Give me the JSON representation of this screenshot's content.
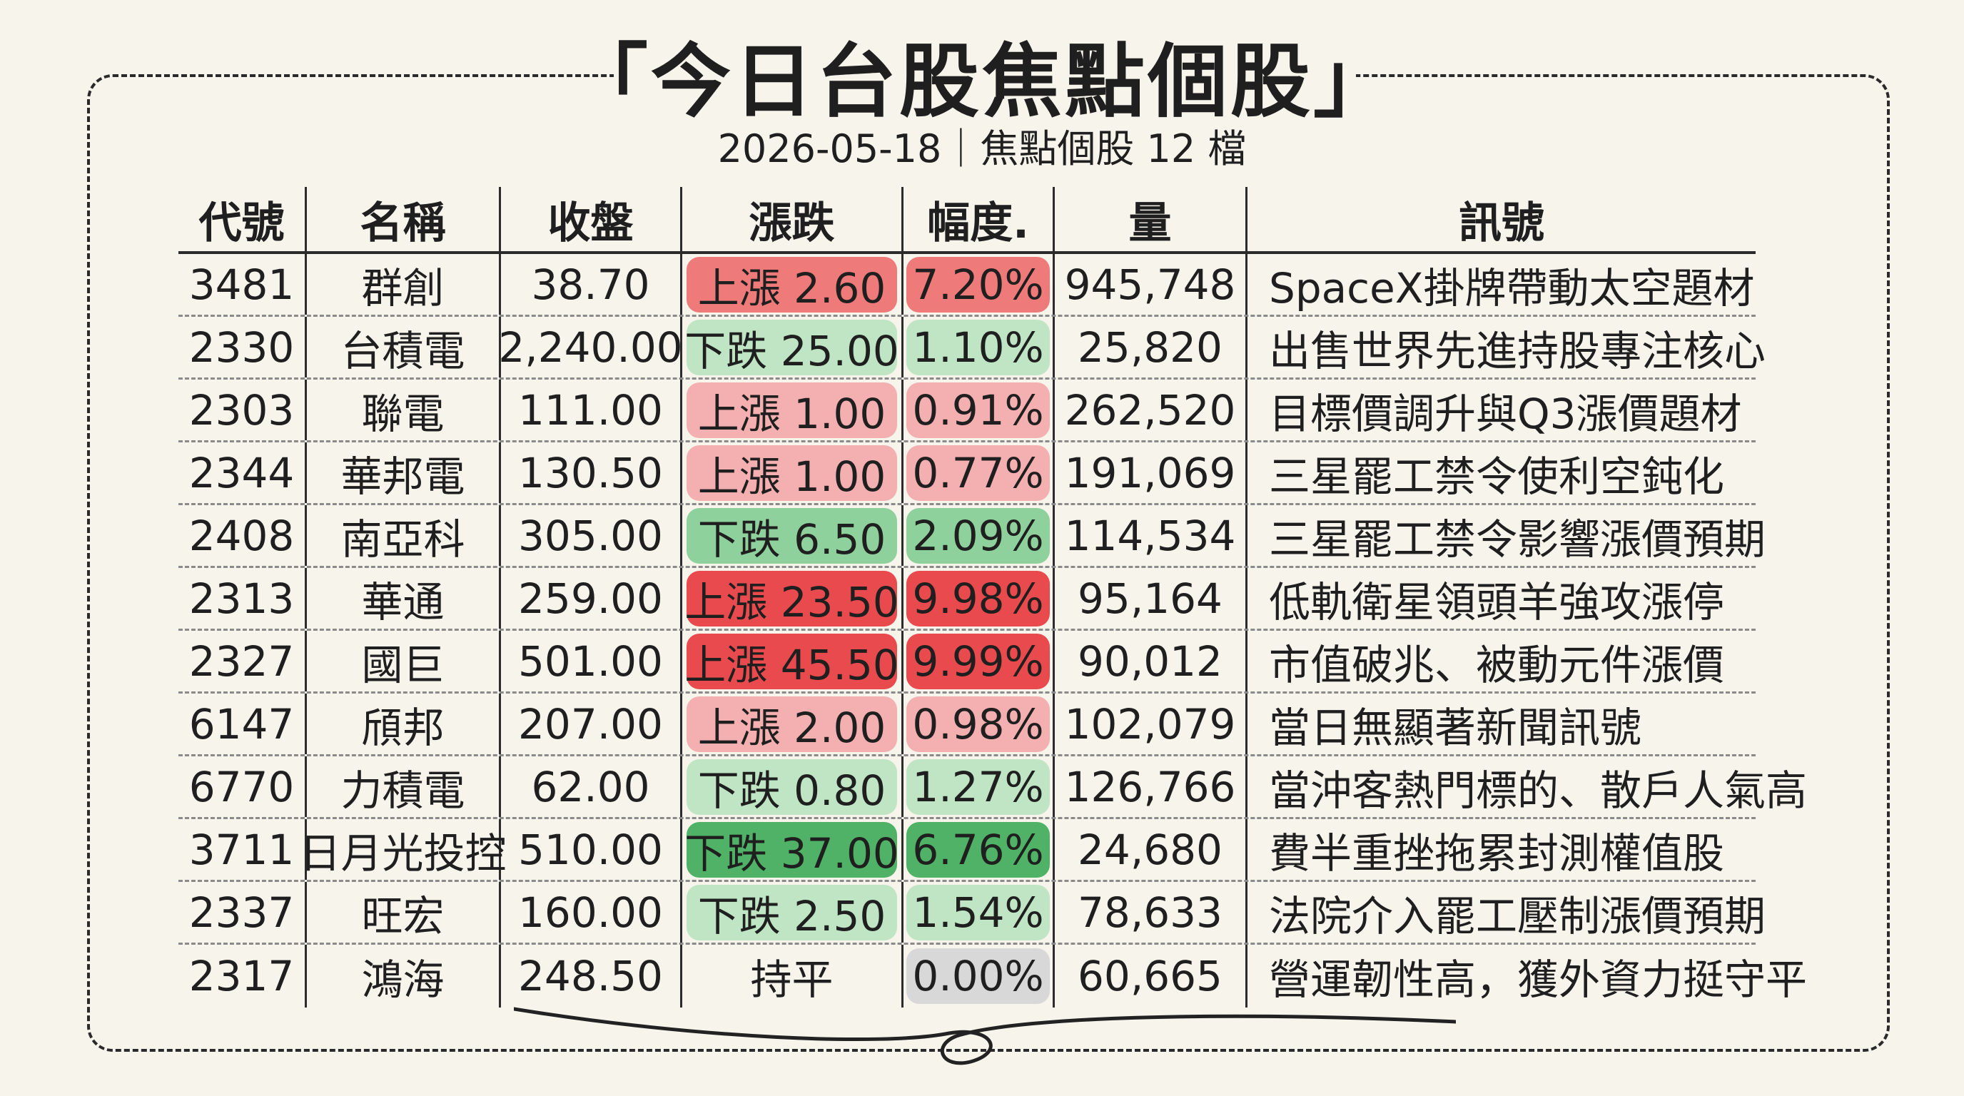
{
  "title": "「今日台股焦點個股」",
  "subtitle": "2026-05-18｜焦點個股 12 檔",
  "headers": [
    "代號",
    "名稱",
    "收盤",
    "漲跌",
    "幅度.",
    "量",
    "訊號"
  ],
  "colors": {
    "up_strong": "#e84a4d",
    "up_medium": "#ee7a79",
    "up_light": "#f4b0b0",
    "down_strong": "#4fb266",
    "down_medium": "#8fd19d",
    "down_light": "#bfe5c4",
    "flat": "#d8d8d8"
  },
  "rows": [
    {
      "code": "3481",
      "name": "群創",
      "close": "38.70",
      "change": "上漲  2.60",
      "pct": "7.20%",
      "volume": "945,748",
      "signal": "SpaceX掛牌帶動太空題材",
      "tone": "up",
      "level": "medium"
    },
    {
      "code": "2330",
      "name": "台積電",
      "close": "2,240.00",
      "change": "下跌 25.00",
      "pct": "1.10%",
      "volume": "25,820",
      "signal": "出售世界先進持股專注核心",
      "tone": "down",
      "level": "light"
    },
    {
      "code": "2303",
      "name": "聯電",
      "close": "111.00",
      "change": "上漲  1.00",
      "pct": "0.91%",
      "volume": "262,520",
      "signal": "目標價調升與Q3漲價題材",
      "tone": "up",
      "level": "light"
    },
    {
      "code": "2344",
      "name": "華邦電",
      "close": "130.50",
      "change": "上漲  1.00",
      "pct": "0.77%",
      "volume": "191,069",
      "signal": "三星罷工禁令使利空鈍化",
      "tone": "up",
      "level": "light"
    },
    {
      "code": "2408",
      "name": "南亞科",
      "close": "305.00",
      "change": "下跌  6.50",
      "pct": "2.09%",
      "volume": "114,534",
      "signal": "三星罷工禁令影響漲價預期",
      "tone": "down",
      "level": "medium"
    },
    {
      "code": "2313",
      "name": "華通",
      "close": "259.00",
      "change": "上漲 23.50",
      "pct": "9.98%",
      "volume": "95,164",
      "signal": "低軌衛星領頭羊強攻漲停",
      "tone": "up",
      "level": "strong"
    },
    {
      "code": "2327",
      "name": "國巨",
      "close": "501.00",
      "change": "上漲 45.50",
      "pct": "9.99%",
      "volume": "90,012",
      "signal": "市值破兆、被動元件漲價",
      "tone": "up",
      "level": "strong"
    },
    {
      "code": "6147",
      "name": "頎邦",
      "close": "207.00",
      "change": "上漲  2.00",
      "pct": "0.98%",
      "volume": "102,079",
      "signal": "當日無顯著新聞訊號",
      "tone": "up",
      "level": "light"
    },
    {
      "code": "6770",
      "name": "力積電",
      "close": "62.00",
      "change": "下跌  0.80",
      "pct": "1.27%",
      "volume": "126,766",
      "signal": "當沖客熱門標的、散戶人氣高",
      "tone": "down",
      "level": "light"
    },
    {
      "code": "3711",
      "name": "日月光投控",
      "close": "510.00",
      "change": "下跌 37.00",
      "pct": "6.76%",
      "volume": "24,680",
      "signal": "費半重挫拖累封測權值股",
      "tone": "down",
      "level": "strong"
    },
    {
      "code": "2337",
      "name": "旺宏",
      "close": "160.00",
      "change": "下跌  2.50",
      "pct": "1.54%",
      "volume": "78,633",
      "signal": "法院介入罷工壓制漲價預期",
      "tone": "down",
      "level": "light"
    },
    {
      "code": "2317",
      "name": "鴻海",
      "close": "248.50",
      "change": "持平",
      "pct": "0.00%",
      "volume": "60,665",
      "signal": "營運韌性高，獲外資力挺守平",
      "tone": "flat",
      "level": "flat"
    }
  ]
}
